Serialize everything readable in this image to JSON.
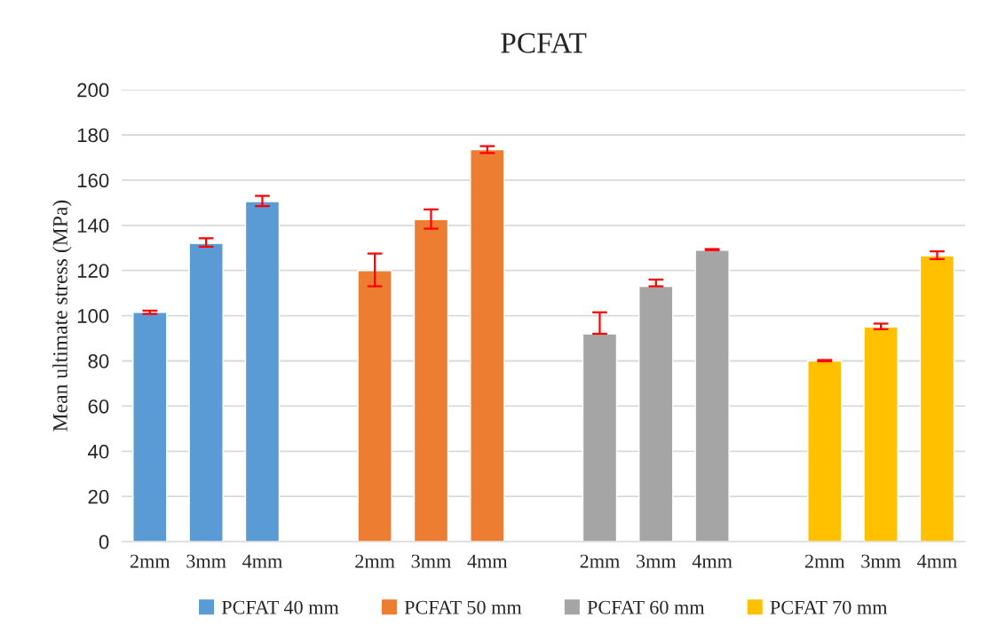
{
  "chart_data": {
    "type": "bar",
    "title": "PCFAT",
    "ylabel": "Mean ultimate stress (MPa)",
    "categories": [
      "2mm",
      "3mm",
      "4mm",
      null,
      "2mm",
      "3mm",
      "4mm",
      null,
      "2mm",
      "3mm",
      "4mm",
      null,
      "2mm",
      "3mm",
      "4mm"
    ],
    "series": [
      {
        "name": "PCFAT 40 mm",
        "color": "#5b9bd5",
        "values": [
          101.5,
          132,
          150.5,
          null,
          null,
          null,
          null,
          null,
          null,
          null,
          null,
          null,
          null,
          null,
          null
        ],
        "errors": [
          [
            100.8,
            102.2
          ],
          [
            130.5,
            134.3
          ],
          [
            148.5,
            153
          ],
          null,
          null,
          null,
          null,
          null,
          null,
          null,
          null,
          null,
          null,
          null,
          null
        ]
      },
      {
        "name": "PCFAT 50 mm",
        "color": "#ed7d31",
        "values": [
          null,
          null,
          null,
          null,
          120,
          142.5,
          173.5,
          null,
          null,
          null,
          null,
          null,
          null,
          null,
          null
        ],
        "errors": [
          null,
          null,
          null,
          null,
          [
            113,
            127.5
          ],
          [
            138.5,
            147
          ],
          [
            172,
            175
          ],
          null,
          null,
          null,
          null,
          null,
          null,
          null,
          null
        ]
      },
      {
        "name": "PCFAT 60 mm",
        "color": "#a5a5a5",
        "values": [
          null,
          null,
          null,
          null,
          null,
          null,
          null,
          null,
          92,
          113,
          129,
          null,
          null,
          null,
          null
        ],
        "errors": [
          null,
          null,
          null,
          null,
          null,
          null,
          null,
          null,
          [
            92,
            101.5
          ],
          [
            113,
            116
          ],
          [
            129,
            129.5
          ],
          null,
          null,
          null,
          null
        ]
      },
      {
        "name": "PCFAT 70 mm",
        "color": "#ffc000",
        "values": [
          null,
          null,
          null,
          null,
          null,
          null,
          null,
          null,
          null,
          null,
          null,
          null,
          80,
          95,
          126.5
        ],
        "errors": [
          null,
          null,
          null,
          null,
          null,
          null,
          null,
          null,
          null,
          null,
          null,
          null,
          [
            79.8,
            80.4
          ],
          [
            94,
            96.5
          ],
          [
            125,
            128.5
          ]
        ]
      }
    ],
    "ylim": [
      0,
      200
    ],
    "yticks": [
      0,
      20,
      40,
      60,
      80,
      100,
      120,
      140,
      160,
      180,
      200
    ],
    "grid": "y",
    "legend": "bottom"
  }
}
